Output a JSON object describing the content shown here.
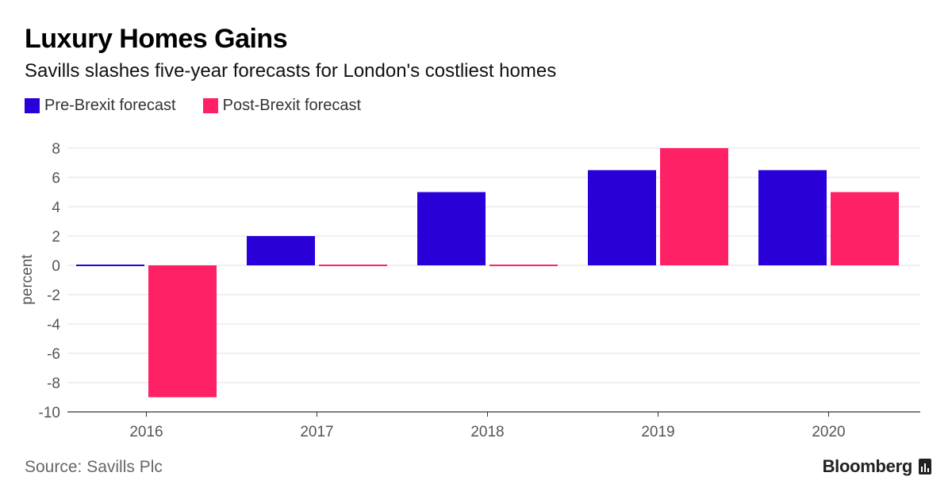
{
  "header": {
    "title": "Luxury Homes Gains",
    "subtitle": "Savills slashes five-year forecasts for London's costliest homes"
  },
  "legend": [
    {
      "label": "Pre-Brexit forecast",
      "color": "#2a00d9"
    },
    {
      "label": "Post-Brexit forecast",
      "color": "#ff2166"
    }
  ],
  "footer": {
    "source": "Source: Savills Plc",
    "brand": "Bloomberg",
    "brand_icon": "bloomberg-terminal-icon"
  },
  "chart_data": {
    "type": "bar",
    "title": "Luxury Homes Gains",
    "subtitle": "Savills slashes five-year forecasts for London's costliest homes",
    "xlabel": "",
    "ylabel": "percent",
    "categories": [
      "2016",
      "2017",
      "2018",
      "2019",
      "2020"
    ],
    "series": [
      {
        "name": "Pre-Brexit forecast",
        "color": "#2a00d9",
        "values": [
          0,
          2,
          5,
          6.5,
          6.5
        ]
      },
      {
        "name": "Post-Brexit forecast",
        "color": "#ff2166",
        "values": [
          -9,
          0,
          0,
          8,
          5
        ]
      }
    ],
    "ylim": [
      -10,
      8
    ],
    "yticks": [
      8,
      6,
      4,
      2,
      0,
      -2,
      -4,
      -6,
      -8,
      -10
    ],
    "grid": true,
    "legend_position": "top-left"
  }
}
